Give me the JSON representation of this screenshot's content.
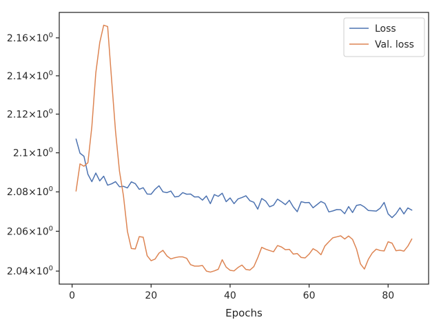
{
  "chart_data": {
    "type": "line",
    "title": "",
    "xlabel": "Epochs",
    "ylabel": "",
    "xlim": [
      -3.25,
      90.25
    ],
    "ylim": [
      2.0335,
      2.1735
    ],
    "x_ticks": [
      0,
      20,
      40,
      60,
      80
    ],
    "x_tick_labels": [
      "0",
      "20",
      "40",
      "60",
      "80"
    ],
    "y_ticks": [
      2.04,
      2.06,
      2.08,
      2.1,
      2.12,
      2.14,
      2.16
    ],
    "y_tick_labels": [
      {
        "mantissa": "2.04",
        "base": "10",
        "exp": "0"
      },
      {
        "mantissa": "2.06",
        "base": "10",
        "exp": "0"
      },
      {
        "mantissa": "2.08",
        "base": "10",
        "exp": "0"
      },
      {
        "mantissa": "2.1",
        "base": "10",
        "exp": "0"
      },
      {
        "mantissa": "2.12",
        "base": "10",
        "exp": "0"
      },
      {
        "mantissa": "2.14",
        "base": "10",
        "exp": "0"
      },
      {
        "mantissa": "2.16",
        "base": "10",
        "exp": "0"
      }
    ],
    "y_scale": "log",
    "grid": false,
    "legend_position": "top-right",
    "series": [
      {
        "name": "Loss",
        "color": "#4c72b0",
        "values": [
          [
            1,
            2.1071
          ],
          [
            2,
            2.0998
          ],
          [
            3,
            2.0982
          ],
          [
            4,
            2.089
          ],
          [
            5,
            2.0852
          ],
          [
            6,
            2.0896
          ],
          [
            7,
            2.0856
          ],
          [
            8,
            2.088
          ],
          [
            9,
            2.0834
          ],
          [
            10,
            2.0841
          ],
          [
            11,
            2.0852
          ],
          [
            12,
            2.0826
          ],
          [
            13,
            2.0828
          ],
          [
            14,
            2.082
          ],
          [
            15,
            2.0851
          ],
          [
            16,
            2.0842
          ],
          [
            17,
            2.0813
          ],
          [
            18,
            2.0821
          ],
          [
            19,
            2.0789
          ],
          [
            20,
            2.0788
          ],
          [
            21,
            2.0813
          ],
          [
            22,
            2.0831
          ],
          [
            23,
            2.08
          ],
          [
            24,
            2.0796
          ],
          [
            25,
            2.0804
          ],
          [
            26,
            2.0774
          ],
          [
            27,
            2.0777
          ],
          [
            28,
            2.0796
          ],
          [
            29,
            2.0788
          ],
          [
            30,
            2.0789
          ],
          [
            31,
            2.0774
          ],
          [
            32,
            2.0775
          ],
          [
            33,
            2.0758
          ],
          [
            34,
            2.0779
          ],
          [
            35,
            2.074
          ],
          [
            36,
            2.0786
          ],
          [
            37,
            2.0777
          ],
          [
            38,
            2.0793
          ],
          [
            39,
            2.075
          ],
          [
            40,
            2.0769
          ],
          [
            41,
            2.074
          ],
          [
            42,
            2.0764
          ],
          [
            43,
            2.0771
          ],
          [
            44,
            2.078
          ],
          [
            45,
            2.0755
          ],
          [
            46,
            2.0747
          ],
          [
            47,
            2.0712
          ],
          [
            48,
            2.0766
          ],
          [
            49,
            2.0753
          ],
          [
            50,
            2.0724
          ],
          [
            51,
            2.0732
          ],
          [
            52,
            2.0763
          ],
          [
            53,
            2.075
          ],
          [
            54,
            2.0735
          ],
          [
            55,
            2.0757
          ],
          [
            56,
            2.0723
          ],
          [
            57,
            2.0699
          ],
          [
            58,
            2.075
          ],
          [
            59,
            2.0745
          ],
          [
            60,
            2.0746
          ],
          [
            61,
            2.0719
          ],
          [
            62,
            2.0735
          ],
          [
            63,
            2.0751
          ],
          [
            64,
            2.0741
          ],
          [
            65,
            2.0698
          ],
          [
            66,
            2.0703
          ],
          [
            67,
            2.071
          ],
          [
            68,
            2.0709
          ],
          [
            69,
            2.0689
          ],
          [
            70,
            2.0725
          ],
          [
            71,
            2.0695
          ],
          [
            72,
            2.0731
          ],
          [
            73,
            2.0735
          ],
          [
            74,
            2.0723
          ],
          [
            75,
            2.0705
          ],
          [
            76,
            2.0704
          ],
          [
            77,
            2.0702
          ],
          [
            78,
            2.0717
          ],
          [
            79,
            2.0746
          ],
          [
            80,
            2.0688
          ],
          [
            81,
            2.0669
          ],
          [
            82,
            2.0689
          ],
          [
            83,
            2.0719
          ],
          [
            84,
            2.0688
          ],
          [
            85,
            2.0718
          ],
          [
            86,
            2.0707
          ]
        ]
      },
      {
        "name": "Val. loss",
        "color": "#dd8452",
        "values": [
          [
            1,
            2.0804
          ],
          [
            2,
            2.0943
          ],
          [
            3,
            2.0931
          ],
          [
            4,
            2.0949
          ],
          [
            5,
            2.1135
          ],
          [
            6,
            2.1415
          ],
          [
            7,
            2.1575
          ],
          [
            8,
            2.1667
          ],
          [
            9,
            2.166
          ],
          [
            10,
            2.138
          ],
          [
            11,
            2.111
          ],
          [
            12,
            2.0905
          ],
          [
            13,
            2.078
          ],
          [
            14,
            2.06
          ],
          [
            15,
            2.0513
          ],
          [
            16,
            2.0511
          ],
          [
            17,
            2.0573
          ],
          [
            18,
            2.057
          ],
          [
            19,
            2.0477
          ],
          [
            20,
            2.0452
          ],
          [
            21,
            2.046
          ],
          [
            22,
            2.049
          ],
          [
            23,
            2.0504
          ],
          [
            24,
            2.0476
          ],
          [
            25,
            2.0461
          ],
          [
            26,
            2.0467
          ],
          [
            27,
            2.0471
          ],
          [
            28,
            2.0471
          ],
          [
            29,
            2.0464
          ],
          [
            30,
            2.0432
          ],
          [
            31,
            2.0425
          ],
          [
            32,
            2.0425
          ],
          [
            33,
            2.0428
          ],
          [
            34,
            2.04
          ],
          [
            35,
            2.0395
          ],
          [
            36,
            2.0401
          ],
          [
            37,
            2.0409
          ],
          [
            38,
            2.0457
          ],
          [
            39,
            2.042
          ],
          [
            40,
            2.0404
          ],
          [
            41,
            2.0401
          ],
          [
            42,
            2.0418
          ],
          [
            43,
            2.043
          ],
          [
            44,
            2.0408
          ],
          [
            45,
            2.0405
          ],
          [
            46,
            2.0422
          ],
          [
            47,
            2.0467
          ],
          [
            48,
            2.0519
          ],
          [
            49,
            2.051
          ],
          [
            50,
            2.0503
          ],
          [
            51,
            2.0497
          ],
          [
            52,
            2.0528
          ],
          [
            53,
            2.0521
          ],
          [
            54,
            2.0507
          ],
          [
            55,
            2.0509
          ],
          [
            56,
            2.0485
          ],
          [
            57,
            2.0488
          ],
          [
            58,
            2.0468
          ],
          [
            59,
            2.0466
          ],
          [
            60,
            2.0485
          ],
          [
            61,
            2.0512
          ],
          [
            62,
            2.0501
          ],
          [
            63,
            2.0482
          ],
          [
            64,
            2.0526
          ],
          [
            65,
            2.0547
          ],
          [
            66,
            2.0567
          ],
          [
            67,
            2.0572
          ],
          [
            68,
            2.0577
          ],
          [
            69,
            2.0561
          ],
          [
            70,
            2.0576
          ],
          [
            71,
            2.0559
          ],
          [
            72,
            2.0511
          ],
          [
            73,
            2.0436
          ],
          [
            74,
            2.041
          ],
          [
            75,
            2.0459
          ],
          [
            76,
            2.0491
          ],
          [
            77,
            2.051
          ],
          [
            78,
            2.0503
          ],
          [
            79,
            2.0501
          ],
          [
            80,
            2.0547
          ],
          [
            81,
            2.054
          ],
          [
            82,
            2.0502
          ],
          [
            83,
            2.0505
          ],
          [
            84,
            2.05
          ],
          [
            85,
            2.0525
          ],
          [
            86,
            2.0561
          ]
        ]
      }
    ]
  }
}
